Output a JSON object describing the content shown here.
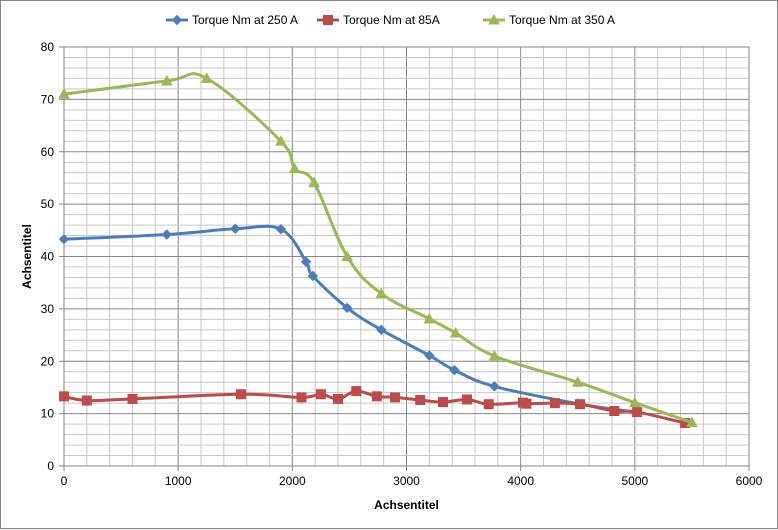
{
  "chart_data": {
    "type": "line",
    "title": "",
    "xlabel": "Achsentitel",
    "ylabel": "Achsentitel",
    "xlim": [
      0,
      6000
    ],
    "ylim": [
      0,
      80
    ],
    "xticks": [
      0,
      1000,
      2000,
      3000,
      4000,
      5000,
      6000
    ],
    "yticks": [
      0,
      10,
      20,
      30,
      40,
      50,
      60,
      70,
      80
    ],
    "grid": true,
    "legend_position": "top",
    "series": [
      {
        "name": "Torque Nm  at 250 A",
        "color": "#4a7ebb",
        "marker": "diamond",
        "x": [
          0,
          900,
          1500,
          1900,
          2120,
          2180,
          2480,
          2780,
          3200,
          3420,
          3770,
          4500,
          5000
        ],
        "y": [
          43.3,
          44.2,
          45.3,
          45.2,
          39.0,
          36.3,
          30.2,
          26.0,
          21.1,
          18.3,
          15.2,
          11.9,
          10.3
        ]
      },
      {
        "name": "Torque Nm at 85A",
        "color": "#be4b48",
        "marker": "square",
        "x": [
          0,
          200,
          600,
          1550,
          2080,
          2250,
          2400,
          2560,
          2740,
          2900,
          3120,
          3320,
          3530,
          3720,
          4020,
          4050,
          4300,
          4520,
          4820,
          5020,
          5440
        ],
        "y": [
          13.3,
          12.5,
          12.8,
          13.7,
          13.1,
          13.7,
          12.8,
          14.3,
          13.3,
          13.1,
          12.6,
          12.2,
          12.7,
          11.8,
          12.1,
          11.9,
          12.0,
          11.8,
          10.5,
          10.3,
          8.2
        ]
      },
      {
        "name": "Torque Nm at 350 A",
        "color": "#98b954",
        "marker": "triangle",
        "x": [
          0,
          900,
          1250,
          1900,
          2020,
          2190,
          2480,
          2780,
          3200,
          3430,
          3770,
          4500,
          5000,
          5500
        ],
        "y": [
          71.0,
          73.5,
          74.0,
          62.0,
          56.8,
          54.1,
          40.0,
          32.9,
          28.1,
          25.4,
          21.0,
          16.0,
          12.1,
          8.3
        ]
      }
    ]
  }
}
